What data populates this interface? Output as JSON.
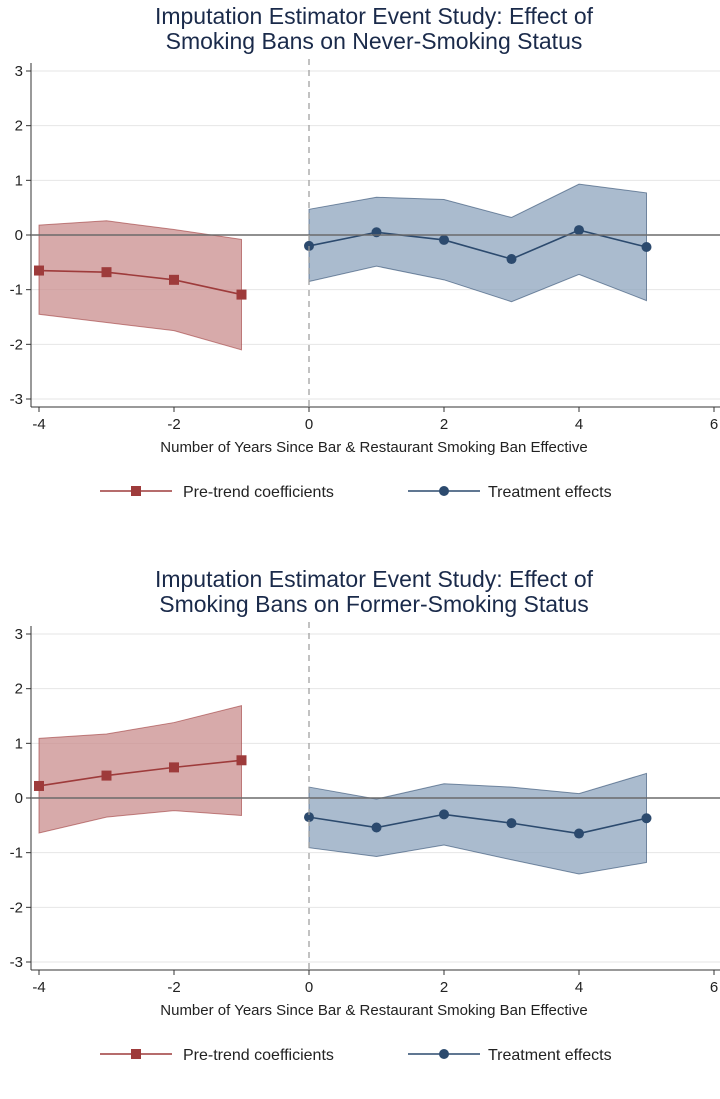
{
  "colors": {
    "pre": "#9e3b3b",
    "pre_band": "#c98d8d",
    "post": "#2c4a6e",
    "post_band": "#8ea4bd",
    "title": "#1a2a4a"
  },
  "chart_data": [
    {
      "type": "line",
      "title_lines": [
        "Imputation Estimator Event Study: Effect of",
        "Smoking Bans on Never-Smoking Status"
      ],
      "xlabel": "Number of Years Since Bar & Restaurant Smoking Ban Effective",
      "xlim": [
        -4,
        6
      ],
      "ylim": [
        -3,
        3
      ],
      "xticks": [
        -4,
        -2,
        0,
        2,
        4,
        6
      ],
      "yticks": [
        -3,
        -2,
        -1,
        0,
        1,
        2,
        3
      ],
      "reference_lines": {
        "y": 0,
        "x_dashed": 0
      },
      "grid": true,
      "legend_position": "bottom",
      "series": [
        {
          "name": "Pre-trend coefficients",
          "marker": "square",
          "x": [
            -4,
            -3,
            -2,
            -1
          ],
          "y": [
            -0.65,
            -0.68,
            -0.82,
            -1.09
          ],
          "ci_lower": [
            -1.45,
            -1.6,
            -1.75,
            -2.1
          ],
          "ci_upper": [
            0.18,
            0.26,
            0.1,
            -0.08
          ]
        },
        {
          "name": "Treatment effects",
          "marker": "circle",
          "x": [
            0,
            1,
            2,
            3,
            4,
            5
          ],
          "y": [
            -0.2,
            0.05,
            -0.09,
            -0.44,
            0.09,
            -0.22
          ],
          "ci_lower": [
            -0.85,
            -0.57,
            -0.82,
            -1.22,
            -0.72,
            -1.2
          ],
          "ci_upper": [
            0.47,
            0.69,
            0.65,
            0.32,
            0.93,
            0.77
          ]
        }
      ]
    },
    {
      "type": "line",
      "title_lines": [
        "Imputation Estimator Event Study: Effect of",
        "Smoking Bans on Former-Smoking Status"
      ],
      "xlabel": "Number of Years Since Bar & Restaurant Smoking Ban Effective",
      "xlim": [
        -4,
        6
      ],
      "ylim": [
        -3,
        3
      ],
      "xticks": [
        -4,
        -2,
        0,
        2,
        4,
        6
      ],
      "yticks": [
        -3,
        -2,
        -1,
        0,
        1,
        2,
        3
      ],
      "reference_lines": {
        "y": 0,
        "x_dashed": 0
      },
      "grid": true,
      "legend_position": "bottom",
      "series": [
        {
          "name": "Pre-trend coefficients",
          "marker": "square",
          "x": [
            -4,
            -3,
            -2,
            -1
          ],
          "y": [
            0.22,
            0.41,
            0.56,
            0.69
          ],
          "ci_lower": [
            -0.64,
            -0.35,
            -0.23,
            -0.32
          ],
          "ci_upper": [
            1.09,
            1.17,
            1.38,
            1.69
          ]
        },
        {
          "name": "Treatment effects",
          "marker": "circle",
          "x": [
            0,
            1,
            2,
            3,
            4,
            5
          ],
          "y": [
            -0.35,
            -0.54,
            -0.3,
            -0.46,
            -0.65,
            -0.37
          ],
          "ci_lower": [
            -0.91,
            -1.07,
            -0.86,
            -1.13,
            -1.39,
            -1.18
          ],
          "ci_upper": [
            0.2,
            -0.02,
            0.26,
            0.2,
            0.08,
            0.45
          ]
        }
      ]
    }
  ]
}
